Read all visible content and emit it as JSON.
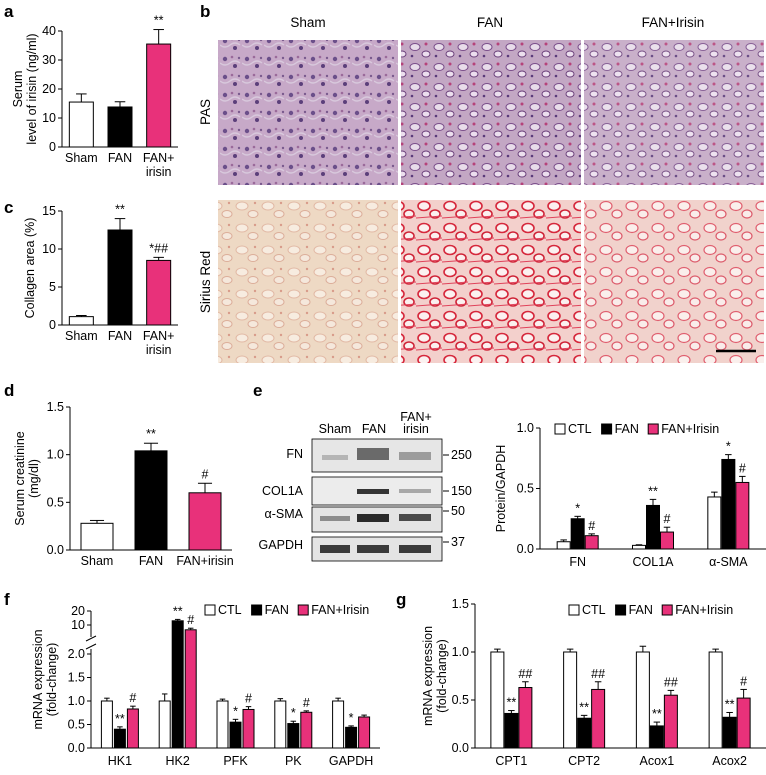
{
  "colors": {
    "ctl": "#ffffff",
    "fan": "#000000",
    "irisin": "#e8317a"
  },
  "panels": {
    "a": "a",
    "b": "b",
    "c": "c",
    "d": "d",
    "e": "e",
    "f": "f",
    "g": "g"
  },
  "histology": {
    "columns": [
      "Sham",
      "FAN",
      "FAN+Irisin"
    ],
    "rows": [
      "PAS",
      "Sirius Red"
    ]
  },
  "blot": {
    "lanes": [
      "Sham",
      "FAN",
      "FAN+",
      "irisin"
    ],
    "proteins": [
      "FN",
      "COL1A",
      "α-SMA",
      "GAPDH"
    ],
    "markers": [
      "250",
      "150",
      "50",
      "37"
    ]
  },
  "chart_data": [
    {
      "id": "a",
      "type": "bar",
      "categories": [
        "Sham",
        "FAN",
        "FAN+ irisin"
      ],
      "category_lines": [
        [
          "Sham"
        ],
        [
          "FAN"
        ],
        [
          "FAN+",
          "irisin"
        ]
      ],
      "values": [
        15.5,
        13.8,
        35.5
      ],
      "errors": [
        2.8,
        1.8,
        5
      ],
      "sig": [
        "",
        "",
        "**"
      ],
      "ylabel": "Serum level of irisin (ng/ml)",
      "ylabel_lines": [
        "Serum",
        "level of irisin (ng/ml)"
      ],
      "ylim": [
        0,
        40
      ],
      "yticks": [
        0,
        10,
        20,
        30,
        40
      ]
    },
    {
      "id": "c",
      "type": "bar",
      "categories": [
        "Sham",
        "FAN",
        "FAN+ irisin"
      ],
      "category_lines": [
        [
          "Sham"
        ],
        [
          "FAN"
        ],
        [
          "FAN+",
          "irisin"
        ]
      ],
      "values": [
        1.1,
        12.5,
        8.5
      ],
      "errors": [
        0.15,
        1.5,
        0.4
      ],
      "sig": [
        "",
        "**",
        "*##"
      ],
      "ylabel": "Collagen area (%)",
      "ylabel_lines": [
        "Collagen area (%)"
      ],
      "ylim": [
        0,
        15
      ],
      "yticks": [
        0,
        5,
        10,
        15
      ]
    },
    {
      "id": "d",
      "type": "bar",
      "categories": [
        "Sham",
        "FAN",
        "FAN+irisin"
      ],
      "category_lines": [
        [
          "Sham"
        ],
        [
          "FAN"
        ],
        [
          "FAN+irisin"
        ]
      ],
      "values": [
        0.28,
        1.04,
        0.6
      ],
      "errors": [
        0.03,
        0.08,
        0.1
      ],
      "sig": [
        "",
        "**",
        "#"
      ],
      "ylabel": "Serum creatinine (mg/dl)",
      "ylabel_lines": [
        "Serum creatinine",
        "(mg/dl)"
      ],
      "ylim": [
        0,
        1.5
      ],
      "yticks": [
        "0.0",
        "0.5",
        "1.0",
        "1.5"
      ]
    },
    {
      "id": "e",
      "type": "bar",
      "categories": [
        "FN",
        "COL1A",
        "α-SMA"
      ],
      "series": [
        {
          "name": "CTL",
          "values": [
            0.06,
            0.03,
            0.43
          ],
          "errors": [
            0.015,
            0.005,
            0.04
          ],
          "sig": [
            "",
            "",
            ""
          ]
        },
        {
          "name": "FAN",
          "values": [
            0.25,
            0.36,
            0.74
          ],
          "errors": [
            0.02,
            0.05,
            0.04
          ],
          "sig": [
            "*",
            "**",
            "*"
          ]
        },
        {
          "name": "FAN+Irisin",
          "values": [
            0.11,
            0.14,
            0.55
          ],
          "errors": [
            0.015,
            0.04,
            0.05
          ],
          "sig": [
            "#",
            "#",
            "#"
          ]
        }
      ],
      "ylabel": "Protein/GAPDH",
      "ylim": [
        0,
        1.0
      ],
      "yticks": [
        "0.0",
        "0.5",
        "1.0"
      ],
      "legend": "top"
    },
    {
      "id": "f",
      "type": "bar",
      "categories": [
        "HK1",
        "HK2",
        "PFK",
        "PK",
        "GAPDH"
      ],
      "series": [
        {
          "name": "CTL",
          "values": [
            1.0,
            1.0,
            1.0,
            1.0,
            1.0
          ],
          "errors": [
            0.06,
            0.15,
            0.04,
            0.05,
            0.06
          ],
          "sig": [
            "",
            "",
            "",
            "",
            ""
          ]
        },
        {
          "name": "FAN",
          "values": [
            0.4,
            13.0,
            0.55,
            0.52,
            0.44
          ],
          "errors": [
            0.05,
            1.0,
            0.06,
            0.05,
            0.03
          ],
          "sig": [
            "**",
            "**",
            "*",
            "*",
            "*"
          ]
        },
        {
          "name": "FAN+Irisin",
          "values": [
            0.83,
            7.0,
            0.82,
            0.76,
            0.66
          ],
          "errors": [
            0.06,
            1.0,
            0.06,
            0.03,
            0.04
          ],
          "sig": [
            "#",
            "#",
            "#",
            "#",
            ""
          ]
        }
      ],
      "ylabel": "mRNA expression (fold-change)",
      "ylabel_lines": [
        "mRNA expression",
        "(fold-change)"
      ],
      "ylim": [
        0,
        20
      ],
      "axis_break": [
        2.0,
        5
      ],
      "yticks_low": [
        "0.0",
        "0.5",
        "1.0",
        "1.5",
        "2.0"
      ],
      "yticks_high": [
        "10",
        "20"
      ],
      "legend": "top"
    },
    {
      "id": "g",
      "type": "bar",
      "categories": [
        "CPT1",
        "CPT2",
        "Acox1",
        "Acox2"
      ],
      "series": [
        {
          "name": "CTL",
          "values": [
            1.0,
            1.0,
            1.0,
            1.0
          ],
          "errors": [
            0.03,
            0.03,
            0.06,
            0.03
          ],
          "sig": [
            "",
            "",
            "",
            ""
          ]
        },
        {
          "name": "FAN",
          "values": [
            0.36,
            0.31,
            0.23,
            0.32
          ],
          "errors": [
            0.03,
            0.03,
            0.04,
            0.05
          ],
          "sig": [
            "**",
            "**",
            "**",
            "**"
          ]
        },
        {
          "name": "FAN+Irisin",
          "values": [
            0.63,
            0.61,
            0.55,
            0.52
          ],
          "errors": [
            0.06,
            0.08,
            0.05,
            0.09
          ],
          "sig": [
            "##",
            "##",
            "##",
            "#"
          ]
        }
      ],
      "ylabel": "mRNA expression (fold-change)",
      "ylabel_lines": [
        "mRNA expression",
        "(fold-change)"
      ],
      "ylim": [
        0,
        1.5
      ],
      "yticks": [
        "0.0",
        "0.5",
        "1.0",
        "1.5"
      ],
      "legend": "top"
    }
  ]
}
